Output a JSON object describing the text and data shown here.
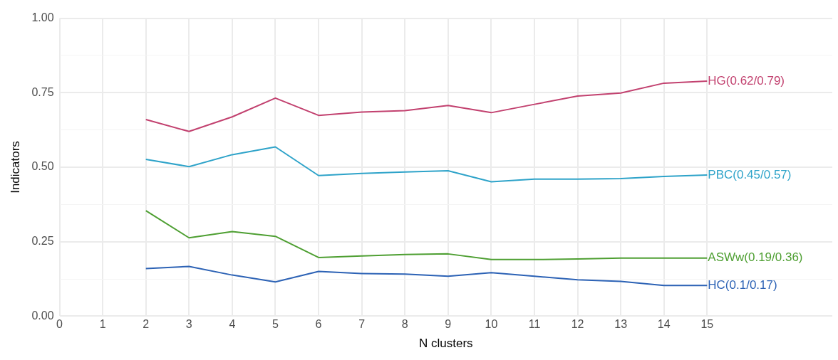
{
  "chart_data": {
    "type": "line",
    "xlabel": "N clusters",
    "ylabel": "Indicators",
    "x": [
      2,
      3,
      4,
      5,
      6,
      7,
      8,
      9,
      10,
      11,
      12,
      13,
      14,
      15
    ],
    "series": [
      {
        "name": "HG(0.62/0.79)",
        "color": "#c2416f",
        "values": [
          0.66,
          0.62,
          0.669,
          0.732,
          0.674,
          0.685,
          0.69,
          0.707,
          0.683,
          0.711,
          0.739,
          0.749,
          0.782,
          0.789
        ]
      },
      {
        "name": "PBC(0.45/0.57)",
        "color": "#2ea3c9",
        "values": [
          0.526,
          0.502,
          0.542,
          0.568,
          0.472,
          0.479,
          0.484,
          0.488,
          0.451,
          0.46,
          0.46,
          0.462,
          0.469,
          0.474
        ]
      },
      {
        "name": "ASWw(0.19/0.36)",
        "color": "#4e9f32",
        "values": [
          0.354,
          0.263,
          0.284,
          0.268,
          0.197,
          0.202,
          0.207,
          0.209,
          0.19,
          0.19,
          0.192,
          0.195,
          0.195,
          0.195
        ]
      },
      {
        "name": "HC(0.1/0.17)",
        "color": "#2c62b5",
        "values": [
          0.16,
          0.167,
          0.138,
          0.115,
          0.15,
          0.143,
          0.141,
          0.134,
          0.146,
          0.134,
          0.122,
          0.117,
          0.103,
          0.103
        ]
      }
    ],
    "xlim": [
      0,
      17.9
    ],
    "xticks": [
      0,
      1,
      2,
      3,
      4,
      5,
      6,
      7,
      8,
      9,
      10,
      11,
      12,
      13,
      14,
      15
    ],
    "ylim": [
      0,
      1
    ],
    "yticks": [
      {
        "value": 0,
        "label": "0.00"
      },
      {
        "value": 0.125,
        "label": null
      },
      {
        "value": 0.25,
        "label": "0.25"
      },
      {
        "value": 0.375,
        "label": null
      },
      {
        "value": 0.5,
        "label": "0.50"
      },
      {
        "value": 0.625,
        "label": null
      },
      {
        "value": 0.75,
        "label": "0.75"
      },
      {
        "value": 0.875,
        "label": null
      },
      {
        "value": 1,
        "label": "1.00"
      }
    ],
    "grid": true,
    "legend": false,
    "marker": "none",
    "line_style": "solid"
  }
}
